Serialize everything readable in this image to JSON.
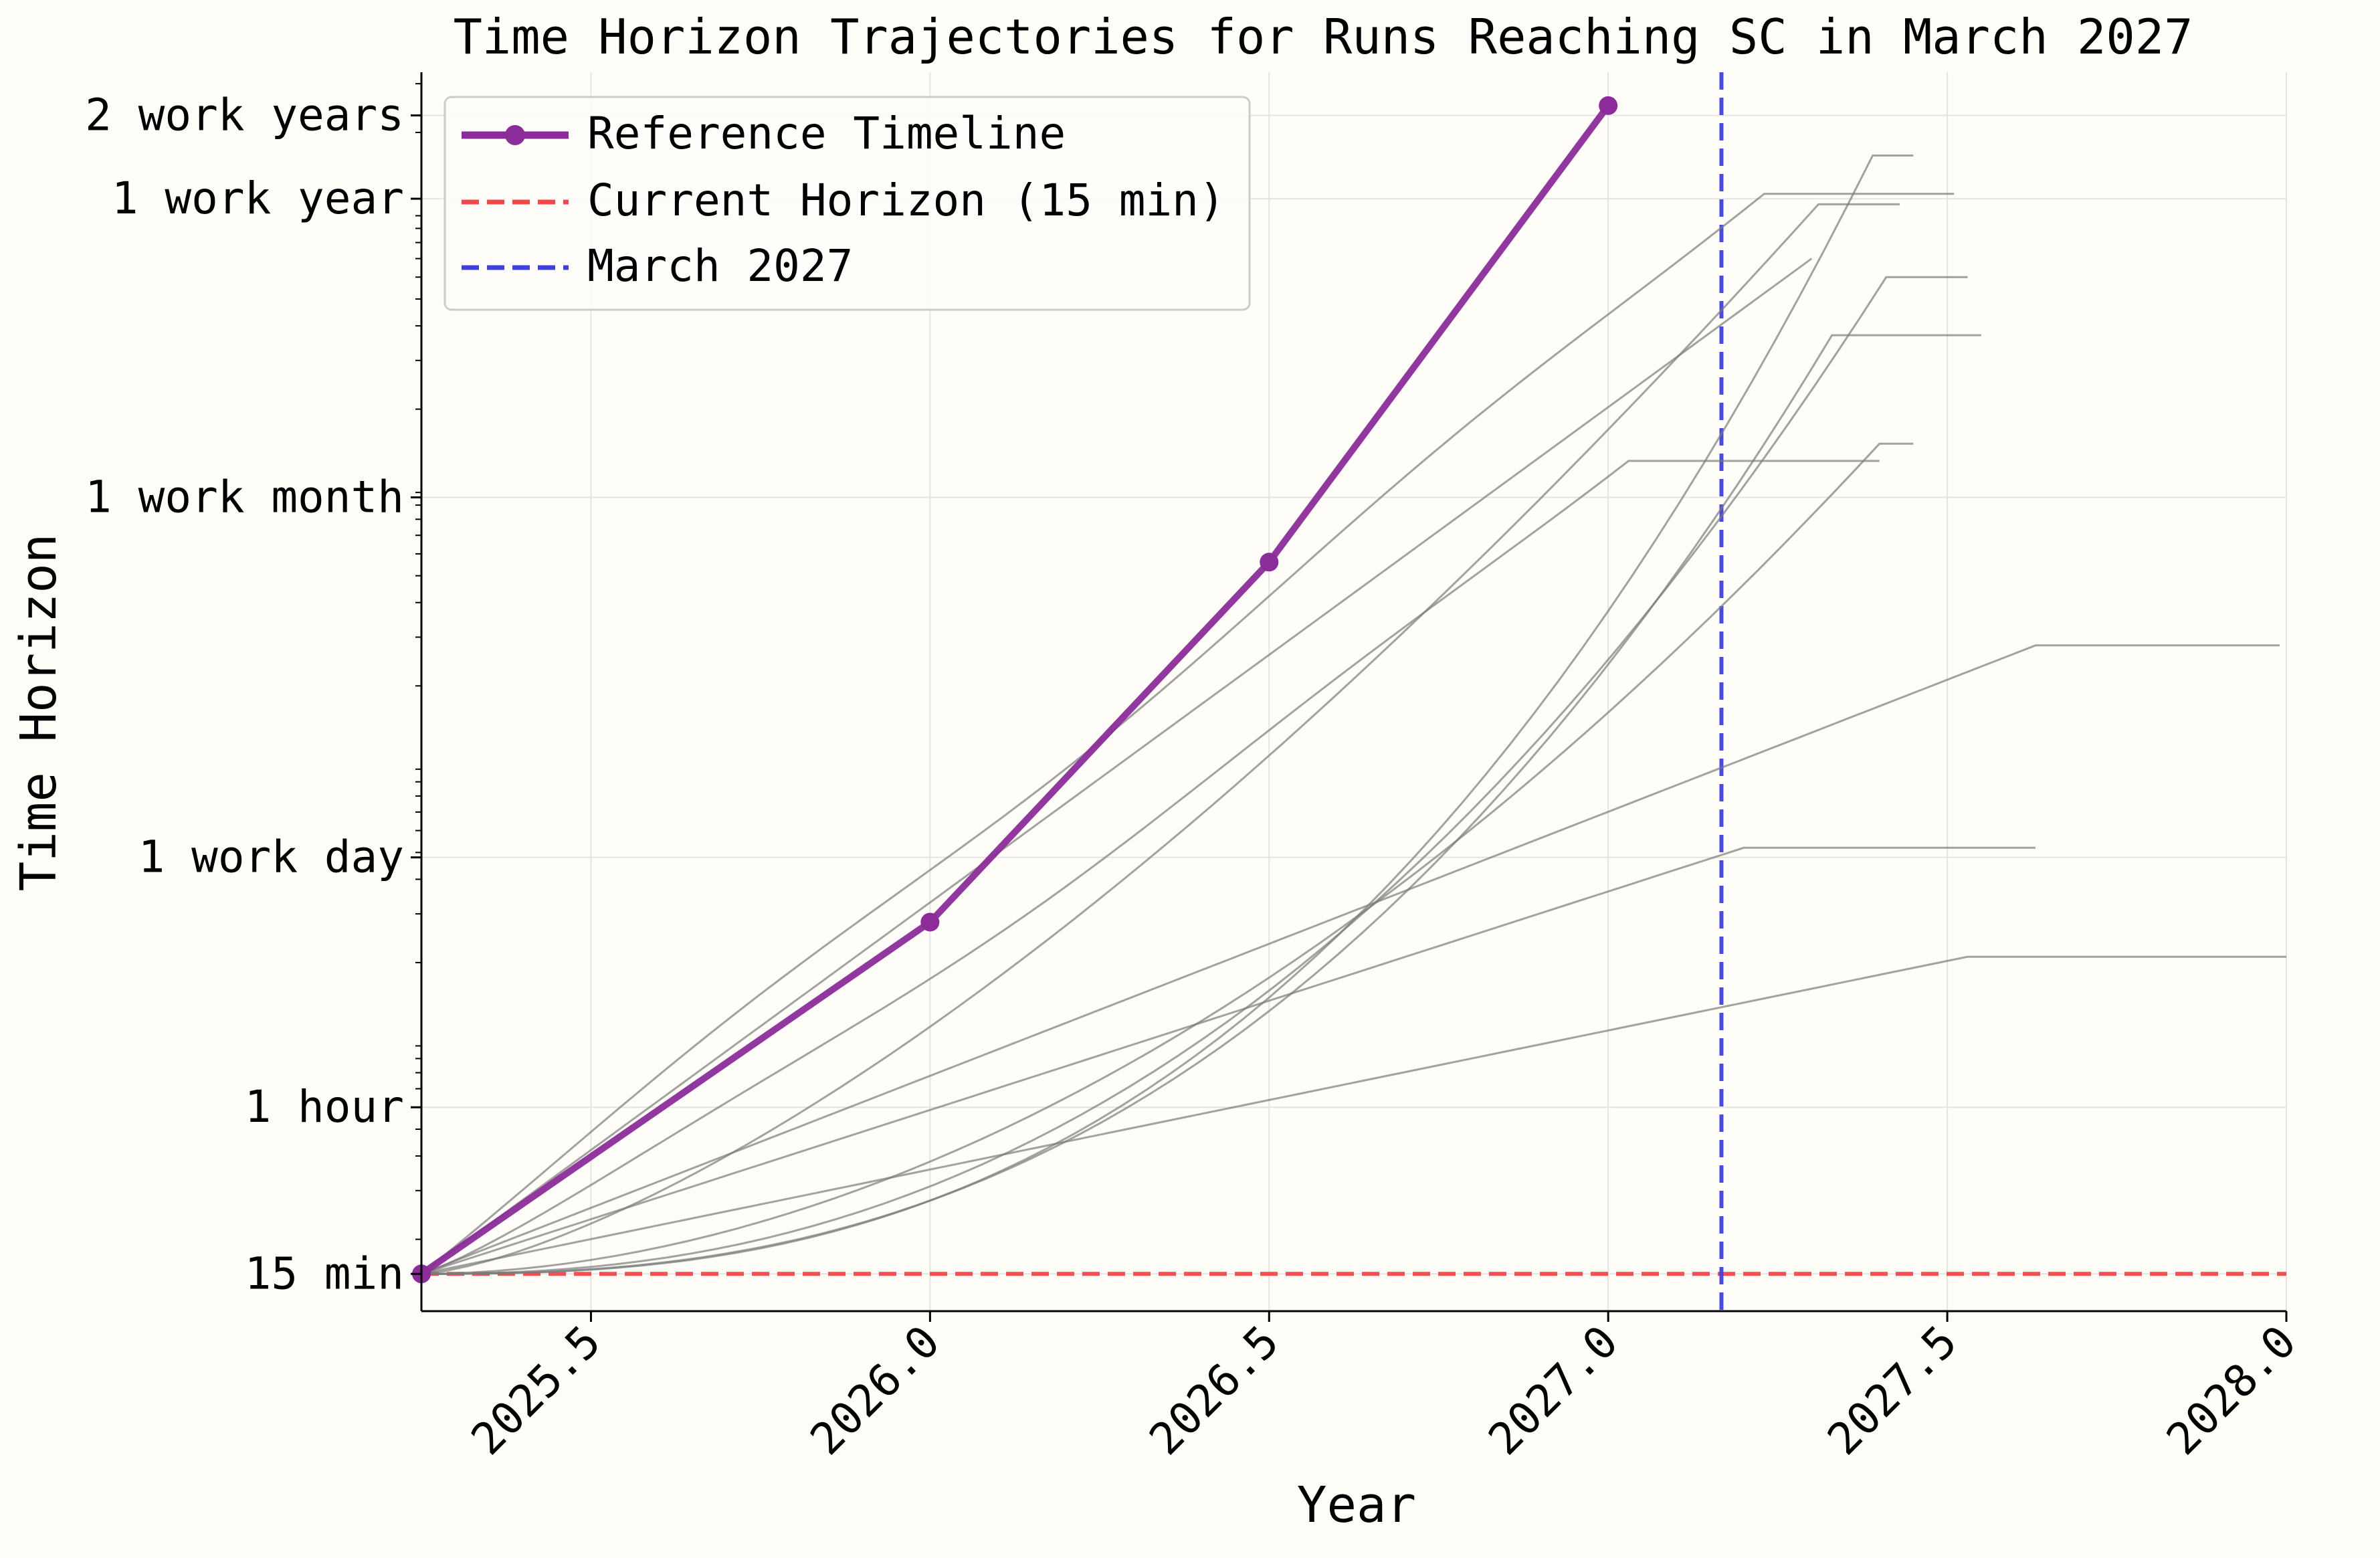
{
  "chart_data": {
    "type": "line",
    "title": "Time Horizon Trajectories for Runs Reaching SC in March 2027",
    "xlabel": "Year",
    "ylabel": "Time Horizon",
    "x_scale": "linear",
    "y_scale": "log",
    "y_unit": "minutes",
    "xlim": [
      2025.25,
      2028.0
    ],
    "ylim_minutes": [
      11,
      330000
    ],
    "xticks": [
      {
        "value": 2025.5,
        "label": "2025.5"
      },
      {
        "value": 2026.0,
        "label": "2026.0"
      },
      {
        "value": 2026.5,
        "label": "2026.5"
      },
      {
        "value": 2027.0,
        "label": "2027.0"
      },
      {
        "value": 2027.5,
        "label": "2027.5"
      },
      {
        "value": 2028.0,
        "label": "2028.0"
      }
    ],
    "yticks": [
      {
        "value": 15,
        "label": "15 min"
      },
      {
        "value": 60,
        "label": "1 hour"
      },
      {
        "value": 480,
        "label": "1 work day"
      },
      {
        "value": 9600,
        "label": "1 work month"
      },
      {
        "value": 115200,
        "label": "1 work year"
      },
      {
        "value": 230400,
        "label": "2 work years"
      }
    ],
    "grid": true,
    "legend_position": "top-left",
    "legend": [
      {
        "label": "Reference Timeline",
        "color": "#8b2c9a",
        "style": "solid-marker"
      },
      {
        "label": "Current Horizon (15 min)",
        "color": "#f04848",
        "style": "dashed"
      },
      {
        "label": "March 2027",
        "color": "#4040e0",
        "style": "dashed"
      }
    ],
    "reference": {
      "name": "Reference Timeline",
      "color": "#8b2c9a",
      "points": [
        [
          2025.25,
          15
        ],
        [
          2026.0,
          280
        ],
        [
          2026.5,
          5600
        ],
        [
          2027.0,
          250000
        ]
      ]
    },
    "hlines": [
      {
        "y": 15,
        "label": "Current Horizon (15 min)",
        "color": "#f04848"
      }
    ],
    "vlines": [
      {
        "x": 2027.167,
        "label": "March 2027",
        "color": "#4040e0"
      }
    ],
    "runs": [
      {
        "plateau": 120000,
        "reach_x": 2027.23,
        "end_x": 2027.51,
        "curve": 1.0,
        "wiggle": 0.05
      },
      {
        "plateau": 110000,
        "reach_x": 2027.31,
        "end_x": 2027.43,
        "curve": 1.45,
        "wiggle": 0.0
      },
      {
        "plateau": 70000,
        "reach_x": 2027.3,
        "end_x": 2027.3,
        "curve": 1.0,
        "wiggle": 0.0
      },
      {
        "plateau": 165000,
        "reach_x": 2027.39,
        "end_x": 2027.45,
        "curve": 2.6,
        "wiggle": 0.0
      },
      {
        "plateau": 60000,
        "reach_x": 2027.41,
        "end_x": 2027.53,
        "curve": 2.3,
        "wiggle": 0.0
      },
      {
        "plateau": 37000,
        "reach_x": 2027.33,
        "end_x": 2027.55,
        "curve": 2.5,
        "wiggle": 0.0
      },
      {
        "plateau": 13000,
        "reach_x": 2027.03,
        "end_x": 2027.4,
        "curve": 1.15,
        "wiggle": 0.04
      },
      {
        "plateau": 15000,
        "reach_x": 2027.4,
        "end_x": 2027.45,
        "curve": 1.9,
        "wiggle": 0.0
      },
      {
        "plateau": 2800,
        "reach_x": 2027.63,
        "end_x": 2027.99,
        "curve": 1.0,
        "wiggle": 0.0
      },
      {
        "plateau": 520,
        "reach_x": 2027.2,
        "end_x": 2027.63,
        "curve": 1.0,
        "wiggle": 0.0
      },
      {
        "plateau": 210,
        "reach_x": 2027.53,
        "end_x": 2028.0,
        "curve": 1.0,
        "wiggle": 0.0
      }
    ]
  }
}
